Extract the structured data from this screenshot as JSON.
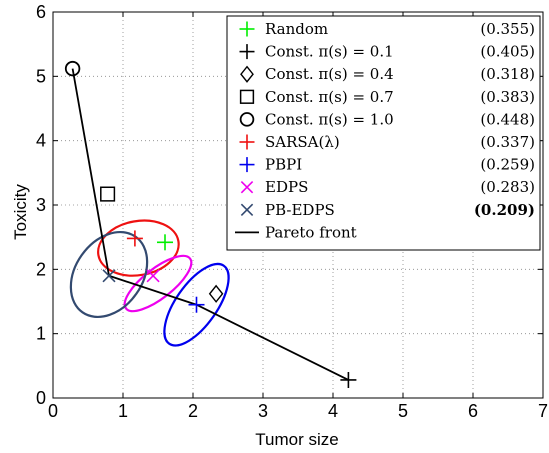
{
  "chart_data": {
    "type": "scatter",
    "xlabel": "Tumor size",
    "ylabel": "Toxicity",
    "xlim": [
      0,
      7
    ],
    "ylim": [
      0,
      6
    ],
    "xticks": [
      "0",
      "1",
      "2",
      "3",
      "4",
      "5",
      "6",
      "7"
    ],
    "yticks": [
      "0",
      "1",
      "2",
      "3",
      "4",
      "5",
      "6"
    ],
    "grid": true,
    "legend_position": "top-right",
    "series": [
      {
        "name": "Random",
        "score": "(0.355)",
        "marker": "plus",
        "color": "#00ee00",
        "points": [
          [
            1.6,
            2.42
          ]
        ]
      },
      {
        "name": "Const. π(s) = 0.1",
        "score": "(0.405)",
        "marker": "plus",
        "color": "#000000",
        "points": [
          [
            4.22,
            0.28
          ]
        ]
      },
      {
        "name": "Const. π(s) = 0.4",
        "score": "(0.318)",
        "marker": "diamond",
        "color": "#000000",
        "points": [
          [
            2.33,
            1.62
          ]
        ]
      },
      {
        "name": "Const. π(s) = 0.7",
        "score": "(0.383)",
        "marker": "square",
        "color": "#000000",
        "points": [
          [
            0.78,
            3.17
          ]
        ]
      },
      {
        "name": "Const. π(s) = 1.0",
        "score": "(0.448)",
        "marker": "circle",
        "color": "#000000",
        "points": [
          [
            0.28,
            5.12
          ]
        ]
      },
      {
        "name": "SARSA(λ)",
        "score": "(0.337)",
        "marker": "plus",
        "color": "#ee1111",
        "points": [
          [
            1.17,
            2.48
          ]
        ],
        "ellipse": {
          "cx": 1.22,
          "cy": 2.33,
          "rx": 0.58,
          "ry": 0.42,
          "angle": -10
        }
      },
      {
        "name": "PBPI",
        "score": "(0.259)",
        "marker": "plus",
        "color": "#0000ee",
        "points": [
          [
            2.05,
            1.45
          ]
        ],
        "ellipse": {
          "cx": 2.05,
          "cy": 1.45,
          "rx": 0.68,
          "ry": 0.32,
          "angle": -55
        }
      },
      {
        "name": "EDPS",
        "score": "(0.283)",
        "marker": "x",
        "color": "#ee00ee",
        "points": [
          [
            1.43,
            1.9
          ]
        ],
        "ellipse": {
          "cx": 1.5,
          "cy": 1.78,
          "rx": 0.58,
          "ry": 0.23,
          "angle": -38
        }
      },
      {
        "name": "PB-EDPS",
        "score": "(0.209)",
        "score_bold": true,
        "marker": "x",
        "color": "#334a70",
        "points": [
          [
            0.8,
            1.9
          ]
        ],
        "ellipse": {
          "cx": 0.8,
          "cy": 1.92,
          "rx": 0.66,
          "ry": 0.52,
          "angle": -55
        }
      },
      {
        "name": "Pareto front",
        "score": "",
        "marker": "line",
        "color": "#000000",
        "points": [
          [
            0.28,
            5.12
          ],
          [
            0.8,
            1.9
          ],
          [
            2.05,
            1.45
          ],
          [
            4.22,
            0.28
          ]
        ]
      }
    ]
  }
}
